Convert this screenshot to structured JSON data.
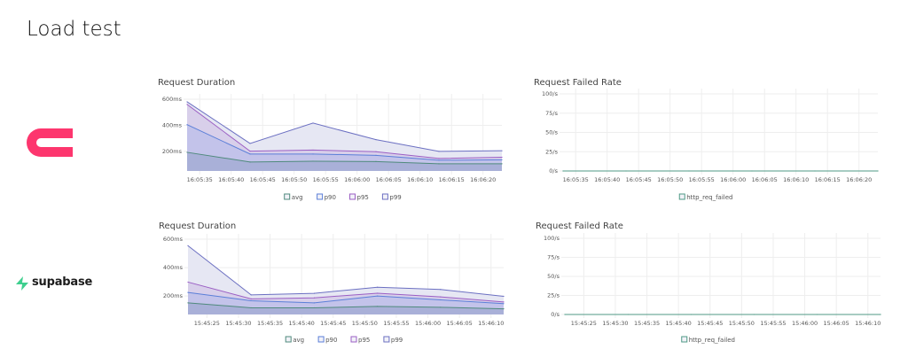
{
  "page_title": "Load test",
  "logos": [
    {
      "name": "appwrite",
      "color": "#fd366e"
    },
    {
      "name": "supabase",
      "text": "supabase",
      "color": "#3ecf8e"
    }
  ],
  "chart_data": [
    {
      "type": "area",
      "title": "Request Duration",
      "x": [
        "16:05:33",
        "16:05:43",
        "16:05:53",
        "16:06:03",
        "16:06:13",
        "16:06:23"
      ],
      "xlim": [
        "16:05:33",
        "16:06:23"
      ],
      "xticks": [
        "16:05:35",
        "16:05:40",
        "16:05:45",
        "16:05:50",
        "16:05:55",
        "16:06:00",
        "16:06:05",
        "16:06:10",
        "16:06:15",
        "16:06:20"
      ],
      "ylim": [
        50,
        600
      ],
      "yticks": [
        200,
        400,
        600
      ],
      "ytick_labels": [
        "200ms",
        "400ms",
        "600ms"
      ],
      "grid": true,
      "legend": "bottom",
      "series": [
        {
          "name": "avg",
          "color": "#4f8a7c",
          "fill": "#a9b0d8",
          "values": [
            193,
            119,
            125,
            122,
            105,
            105
          ]
        },
        {
          "name": "p90",
          "color": "#5b7fd8",
          "fill": "#c3c3ea",
          "values": [
            405,
            180,
            180,
            170,
            132,
            136
          ]
        },
        {
          "name": "p95",
          "color": "#9b5fc4",
          "fill": "#d8cfea",
          "values": [
            560,
            202,
            210,
            198,
            146,
            155
          ]
        },
        {
          "name": "p99",
          "color": "#6c70c2",
          "fill": "#e6e7f3",
          "values": [
            580,
            261,
            417,
            290,
            200,
            205
          ]
        }
      ]
    },
    {
      "type": "line",
      "title": "Request Failed Rate",
      "x": [
        "16:05:33",
        "16:05:43",
        "16:05:53",
        "16:06:03",
        "16:06:13",
        "16:06:23"
      ],
      "xlim": [
        "16:05:33",
        "16:06:23"
      ],
      "xticks": [
        "16:05:35",
        "16:05:40",
        "16:05:45",
        "16:05:50",
        "16:05:55",
        "16:06:00",
        "16:06:05",
        "16:06:10",
        "16:06:15",
        "16:06:20"
      ],
      "ylim": [
        0,
        100
      ],
      "yticks": [
        0,
        25,
        50,
        75,
        100
      ],
      "ytick_labels": [
        "0/s",
        "25/s",
        "50/s",
        "75/s",
        "100/s"
      ],
      "grid": true,
      "legend": "bottom",
      "series": [
        {
          "name": "http_req_failed",
          "color": "#4f9a86",
          "values": [
            0,
            0,
            0,
            0,
            0,
            0
          ]
        }
      ]
    },
    {
      "type": "area",
      "title": "Request Duration",
      "x": [
        "15:45:22",
        "15:45:32",
        "15:45:42",
        "15:45:52",
        "15:46:02",
        "15:46:12"
      ],
      "xlim": [
        "15:45:22",
        "15:46:12"
      ],
      "xticks": [
        "15:45:25",
        "15:45:30",
        "15:45:35",
        "15:45:40",
        "15:45:45",
        "15:45:50",
        "15:45:55",
        "15:46:00",
        "15:46:05",
        "15:46:10"
      ],
      "ylim": [
        70,
        600
      ],
      "yticks": [
        200,
        400,
        600
      ],
      "ytick_labels": [
        "200ms",
        "400ms",
        "600ms"
      ],
      "grid": true,
      "legend": "bottom",
      "series": [
        {
          "name": "avg",
          "color": "#4f8a7c",
          "fill": "#a9b0d8",
          "values": [
            152,
            117,
            117,
            127,
            121,
            110
          ]
        },
        {
          "name": "p90",
          "color": "#5b7fd8",
          "fill": "#c3c3ea",
          "values": [
            225,
            167,
            152,
            200,
            173,
            146
          ]
        },
        {
          "name": "p95",
          "color": "#9b5fc4",
          "fill": "#d8cfea",
          "values": [
            298,
            180,
            187,
            220,
            194,
            158
          ]
        },
        {
          "name": "p99",
          "color": "#6c70c2",
          "fill": "#e6e7f3",
          "values": [
            554,
            208,
            219,
            262,
            246,
            198
          ]
        }
      ]
    },
    {
      "type": "line",
      "title": "Request Failed Rate",
      "x": [
        "15:45:22",
        "15:45:32",
        "15:45:42",
        "15:45:52",
        "15:46:02",
        "15:46:12"
      ],
      "xlim": [
        "15:45:22",
        "15:46:12"
      ],
      "xticks": [
        "15:45:25",
        "15:45:30",
        "15:45:35",
        "15:45:40",
        "15:45:45",
        "15:45:50",
        "15:45:55",
        "15:46:00",
        "15:46:05",
        "15:46:10"
      ],
      "ylim": [
        0,
        100
      ],
      "yticks": [
        0,
        25,
        50,
        75,
        100
      ],
      "ytick_labels": [
        "0/s",
        "25/s",
        "50/s",
        "75/s",
        "100/s"
      ],
      "grid": true,
      "legend": "bottom",
      "series": [
        {
          "name": "http_req_failed",
          "color": "#4f9a86",
          "values": [
            0,
            0,
            0,
            0,
            0,
            0
          ]
        }
      ]
    }
  ]
}
